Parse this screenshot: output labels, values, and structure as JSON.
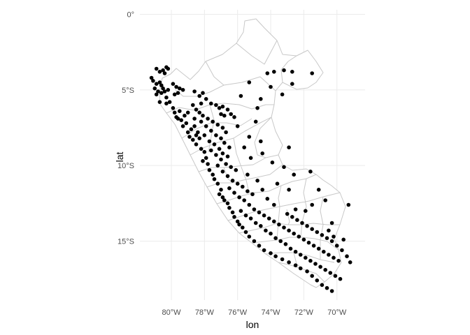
{
  "chart_data": {
    "type": "scatter",
    "title": "",
    "xlabel": "lon",
    "ylabel": "lat",
    "x_ticks": [
      {
        "value": -80,
        "label": "80°W"
      },
      {
        "value": -78,
        "label": "78°W"
      },
      {
        "value": -76,
        "label": "76°W"
      },
      {
        "value": -74,
        "label": "74°W"
      },
      {
        "value": -72,
        "label": "72°W"
      },
      {
        "value": -70,
        "label": "70°W"
      }
    ],
    "y_ticks": [
      {
        "value": 0,
        "label": "0°"
      },
      {
        "value": -5,
        "label": "5°S"
      },
      {
        "value": -10,
        "label": "10°S"
      },
      {
        "value": -15,
        "label": "15°S"
      }
    ],
    "xlim": [
      -81.9,
      -68.3
    ],
    "ylim": [
      -18.9,
      0.3
    ],
    "grid": true,
    "colors": {
      "background": "#ffffff",
      "grid": "#ebebeb",
      "border": "#c8c8c8",
      "point": "#000000",
      "text": "#4d4d4d"
    },
    "series": [
      {
        "points": [
          [
            -80.9,
            -3.6
          ],
          [
            -80.7,
            -3.8
          ],
          [
            -80.5,
            -3.7
          ],
          [
            -80.3,
            -3.5
          ],
          [
            -80.2,
            -3.6
          ],
          [
            -80.4,
            -3.9
          ],
          [
            -81.2,
            -4.2
          ],
          [
            -81.1,
            -4.4
          ],
          [
            -80.9,
            -4.6
          ],
          [
            -80.7,
            -4.5
          ],
          [
            -80.6,
            -4.7
          ],
          [
            -80.5,
            -4.9
          ],
          [
            -81.0,
            -4.9
          ],
          [
            -80.8,
            -5.1
          ],
          [
            -80.6,
            -5.2
          ],
          [
            -80.4,
            -5.1
          ],
          [
            -80.2,
            -5.0
          ],
          [
            -80.9,
            -5.3
          ],
          [
            -80.3,
            -5.5
          ],
          [
            -80.1,
            -5.8
          ],
          [
            -79.9,
            -4.6
          ],
          [
            -79.7,
            -4.8
          ],
          [
            -79.5,
            -4.9
          ],
          [
            -79.3,
            -5.0
          ],
          [
            -79.6,
            -5.2
          ],
          [
            -79.8,
            -5.3
          ],
          [
            -80.7,
            -5.8
          ],
          [
            -80.3,
            -5.9
          ],
          [
            -79.9,
            -6.2
          ],
          [
            -79.8,
            -6.5
          ],
          [
            -79.7,
            -6.8
          ],
          [
            -79.5,
            -6.4
          ],
          [
            -79.6,
            -6.9
          ],
          [
            -79.4,
            -7.0
          ],
          [
            -79.2,
            -6.7
          ],
          [
            -79.0,
            -6.5
          ],
          [
            -79.1,
            -7.2
          ],
          [
            -79.3,
            -7.4
          ],
          [
            -79.0,
            -7.8
          ],
          [
            -78.8,
            -7.6
          ],
          [
            -78.6,
            -7.4
          ],
          [
            -78.9,
            -8.1
          ],
          [
            -78.7,
            -8.3
          ],
          [
            -78.5,
            -8.0
          ],
          [
            -78.3,
            -8.2
          ],
          [
            -78.5,
            -8.6
          ],
          [
            -78.2,
            -8.9
          ],
          [
            -78.0,
            -9.1
          ],
          [
            -77.9,
            -9.5
          ],
          [
            -78.1,
            -9.7
          ],
          [
            -77.8,
            -9.9
          ],
          [
            -77.7,
            -10.3
          ],
          [
            -77.5,
            -10.6
          ],
          [
            -77.4,
            -10.9
          ],
          [
            -77.2,
            -11.2
          ],
          [
            -77.0,
            -11.6
          ],
          [
            -77.1,
            -11.9
          ],
          [
            -76.9,
            -12.1
          ],
          [
            -76.8,
            -12.3
          ],
          [
            -76.6,
            -12.5
          ],
          [
            -76.5,
            -12.8
          ],
          [
            -76.3,
            -13.1
          ],
          [
            -76.2,
            -13.4
          ],
          [
            -76.0,
            -13.7
          ],
          [
            -75.9,
            -13.9
          ],
          [
            -75.7,
            -14.1
          ],
          [
            -75.5,
            -14.4
          ],
          [
            -75.3,
            -14.7
          ],
          [
            -75.0,
            -15.0
          ],
          [
            -74.7,
            -15.3
          ],
          [
            -74.4,
            -15.6
          ],
          [
            -74.0,
            -15.8
          ],
          [
            -73.7,
            -16.0
          ],
          [
            -73.3,
            -16.2
          ],
          [
            -72.9,
            -16.4
          ],
          [
            -72.5,
            -16.6
          ],
          [
            -72.2,
            -16.8
          ],
          [
            -71.8,
            -17.0
          ],
          [
            -71.5,
            -17.3
          ],
          [
            -71.2,
            -17.6
          ],
          [
            -70.9,
            -17.9
          ],
          [
            -70.6,
            -18.1
          ],
          [
            -70.3,
            -18.3
          ],
          [
            -78.6,
            -5.1
          ],
          [
            -78.3,
            -5.4
          ],
          [
            -78.1,
            -5.2
          ],
          [
            -77.9,
            -5.6
          ],
          [
            -78.2,
            -5.9
          ],
          [
            -77.6,
            -5.9
          ],
          [
            -77.3,
            -6.0
          ],
          [
            -77.1,
            -6.2
          ],
          [
            -76.9,
            -6.1
          ],
          [
            -76.6,
            -6.3
          ],
          [
            -76.4,
            -6.6
          ],
          [
            -76.2,
            -6.8
          ],
          [
            -76.8,
            -6.7
          ],
          [
            -77.0,
            -6.6
          ],
          [
            -78.7,
            -6.0
          ],
          [
            -78.5,
            -6.3
          ],
          [
            -78.3,
            -6.5
          ],
          [
            -78.1,
            -6.7
          ],
          [
            -77.8,
            -6.9
          ],
          [
            -77.5,
            -7.1
          ],
          [
            -77.2,
            -7.3
          ],
          [
            -76.9,
            -7.5
          ],
          [
            -76.7,
            -7.8
          ],
          [
            -78.6,
            -6.9
          ],
          [
            -78.2,
            -7.1
          ],
          [
            -77.9,
            -7.4
          ],
          [
            -77.6,
            -7.7
          ],
          [
            -77.3,
            -8.0
          ],
          [
            -77.0,
            -8.2
          ],
          [
            -76.8,
            -8.5
          ],
          [
            -76.5,
            -8.8
          ],
          [
            -78.4,
            -7.8
          ],
          [
            -78.0,
            -8.0
          ],
          [
            -77.7,
            -8.4
          ],
          [
            -77.4,
            -8.6
          ],
          [
            -77.1,
            -8.9
          ],
          [
            -76.9,
            -9.2
          ],
          [
            -76.6,
            -9.4
          ],
          [
            -77.6,
            -9.0
          ],
          [
            -77.3,
            -9.3
          ],
          [
            -77.0,
            -9.6
          ],
          [
            -76.7,
            -9.9
          ],
          [
            -76.4,
            -10.1
          ],
          [
            -76.1,
            -10.3
          ],
          [
            -77.2,
            -10.0
          ],
          [
            -76.9,
            -10.4
          ],
          [
            -76.6,
            -10.7
          ],
          [
            -76.3,
            -11.0
          ],
          [
            -76.0,
            -11.2
          ],
          [
            -75.7,
            -11.4
          ],
          [
            -75.4,
            -11.7
          ],
          [
            -75.1,
            -11.9
          ],
          [
            -76.5,
            -11.5
          ],
          [
            -76.2,
            -11.8
          ],
          [
            -75.9,
            -12.1
          ],
          [
            -75.6,
            -12.3
          ],
          [
            -75.3,
            -12.6
          ],
          [
            -75.0,
            -12.9
          ],
          [
            -74.7,
            -13.1
          ],
          [
            -74.4,
            -13.3
          ],
          [
            -74.1,
            -13.5
          ],
          [
            -73.8,
            -13.7
          ],
          [
            -73.5,
            -13.9
          ],
          [
            -73.2,
            -14.1
          ],
          [
            -72.9,
            -14.3
          ],
          [
            -72.6,
            -14.5
          ],
          [
            -72.3,
            -14.7
          ],
          [
            -72.0,
            -14.9
          ],
          [
            -71.7,
            -15.1
          ],
          [
            -71.4,
            -15.3
          ],
          [
            -71.1,
            -15.5
          ],
          [
            -70.8,
            -15.7
          ],
          [
            -70.5,
            -15.9
          ],
          [
            -70.2,
            -16.1
          ],
          [
            -69.9,
            -16.3
          ],
          [
            -75.8,
            -13.0
          ],
          [
            -75.5,
            -13.3
          ],
          [
            -75.2,
            -13.5
          ],
          [
            -74.9,
            -13.8
          ],
          [
            -74.6,
            -14.0
          ],
          [
            -74.3,
            -14.3
          ],
          [
            -74.0,
            -14.5
          ],
          [
            -73.7,
            -14.8
          ],
          [
            -73.4,
            -15.0
          ],
          [
            -73.1,
            -15.2
          ],
          [
            -72.8,
            -15.5
          ],
          [
            -72.5,
            -15.7
          ],
          [
            -72.2,
            -15.9
          ],
          [
            -71.9,
            -16.1
          ],
          [
            -71.6,
            -16.3
          ],
          [
            -71.3,
            -16.5
          ],
          [
            -71.0,
            -16.7
          ],
          [
            -70.7,
            -16.9
          ],
          [
            -70.4,
            -17.1
          ],
          [
            -70.1,
            -17.3
          ],
          [
            -69.8,
            -17.5
          ],
          [
            -73.0,
            -13.2
          ],
          [
            -72.7,
            -13.4
          ],
          [
            -72.4,
            -13.6
          ],
          [
            -72.1,
            -13.8
          ],
          [
            -71.8,
            -14.0
          ],
          [
            -71.5,
            -14.2
          ],
          [
            -71.2,
            -14.4
          ],
          [
            -70.9,
            -14.6
          ],
          [
            -70.6,
            -14.8
          ],
          [
            -70.3,
            -15.0
          ],
          [
            -70.0,
            -15.3
          ],
          [
            -69.7,
            -15.6
          ],
          [
            -69.4,
            -16.0
          ],
          [
            -69.2,
            -16.4
          ],
          [
            -70.5,
            -14.3
          ],
          [
            -70.2,
            -14.7
          ],
          [
            -69.6,
            -14.9
          ],
          [
            -71.9,
            -13.0
          ],
          [
            -72.5,
            -12.9
          ],
          [
            -73.8,
            -12.6
          ],
          [
            -74.2,
            -12.2
          ],
          [
            -74.5,
            -11.6
          ],
          [
            -73.6,
            -11.2
          ],
          [
            -72.9,
            -11.6
          ],
          [
            -71.5,
            -12.6
          ],
          [
            -70.3,
            -13.8
          ],
          [
            -69.3,
            -12.6
          ],
          [
            -70.7,
            -12.3
          ],
          [
            -71.1,
            -11.6
          ],
          [
            -74.6,
            -8.4
          ],
          [
            -74.5,
            -9.2
          ],
          [
            -73.9,
            -9.8
          ],
          [
            -73.2,
            -10.1
          ],
          [
            -72.6,
            -10.6
          ],
          [
            -71.6,
            -10.4
          ],
          [
            -74.8,
            -6.2
          ],
          [
            -74.0,
            -4.8
          ],
          [
            -73.8,
            -3.8
          ],
          [
            -73.2,
            -3.7
          ],
          [
            -72.7,
            -3.8
          ],
          [
            -71.5,
            -3.9
          ],
          [
            -72.7,
            -4.6
          ],
          [
            -74.2,
            -3.9
          ],
          [
            -73.3,
            -5.3
          ],
          [
            -75.3,
            -4.5
          ],
          [
            -75.8,
            -5.4
          ],
          [
            -74.6,
            -5.6
          ],
          [
            -74.9,
            -7.1
          ],
          [
            -75.3,
            -8.1
          ],
          [
            -76.0,
            -7.4
          ],
          [
            -75.6,
            -8.8
          ],
          [
            -75.2,
            -9.5
          ],
          [
            -75.4,
            -10.6
          ],
          [
            -74.8,
            -11.0
          ],
          [
            -72.9,
            -8.8
          ]
        ]
      }
    ]
  }
}
